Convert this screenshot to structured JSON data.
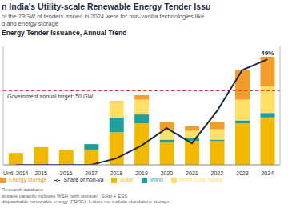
{
  "chart_data": {
    "type": "bar",
    "title": "n India's Utility-scale Renewable Energy Tender Issu",
    "subtitle": [
      "of the 73GW of tenders issued in 2024 were for non-vanilla technologies like",
      "d and energy storage"
    ],
    "chart_title": "Energy Tender Issuance, Annual Trend",
    "categories": [
      "Until 2014",
      "2015",
      "2016",
      "2017",
      "2018",
      "2019",
      "2020",
      "2021",
      "2022",
      "2023",
      "2024"
    ],
    "series": [
      {
        "name": "Solar",
        "type": "bar",
        "color": "#f2b800",
        "values": [
          8,
          12,
          10,
          10,
          22,
          28,
          15,
          16,
          16,
          28,
          32
        ]
      },
      {
        "name": "Wind",
        "type": "bar",
        "color": "#1f9e9e",
        "values": [
          0,
          0,
          0,
          4,
          10,
          6,
          2,
          2,
          1,
          2,
          3
        ]
      },
      {
        "name": "Wind solar hybrid",
        "type": "bar",
        "color": "#ffe066",
        "values": [
          0,
          0,
          0,
          0,
          10,
          10,
          6,
          5,
          7,
          14,
          18
        ]
      },
      {
        "name": "Energy storage",
        "type": "bar",
        "color": "#f39c2b",
        "values": [
          0,
          0,
          0,
          0,
          1,
          3,
          6,
          3,
          5,
          20,
          20
        ]
      },
      {
        "name": "Share of non-va",
        "type": "line",
        "axis": "y2",
        "color": "#1d2b45",
        "values": [
          0,
          0,
          0,
          0,
          3,
          9,
          17,
          10,
          25,
          44,
          49
        ],
        "value_labels": [
          null,
          null,
          null,
          null,
          null,
          null,
          null,
          null,
          null,
          null,
          "49%"
        ]
      }
    ],
    "ylim": [
      0,
      80
    ],
    "y2lim": [
      0,
      55
    ],
    "stacked": true,
    "grid": false,
    "legend": "bottom",
    "tick_labels": "x",
    "reference_line": {
      "value": 50,
      "label": "Government annual target: 50 GW",
      "color": "#e03a3a"
    },
    "notes": [
      "Research database",
      "storage capacity includes WSH (with storage), Solar + ESS",
      "dispatchable renewable energy (FDRE). It does not include standalone storage."
    ]
  }
}
